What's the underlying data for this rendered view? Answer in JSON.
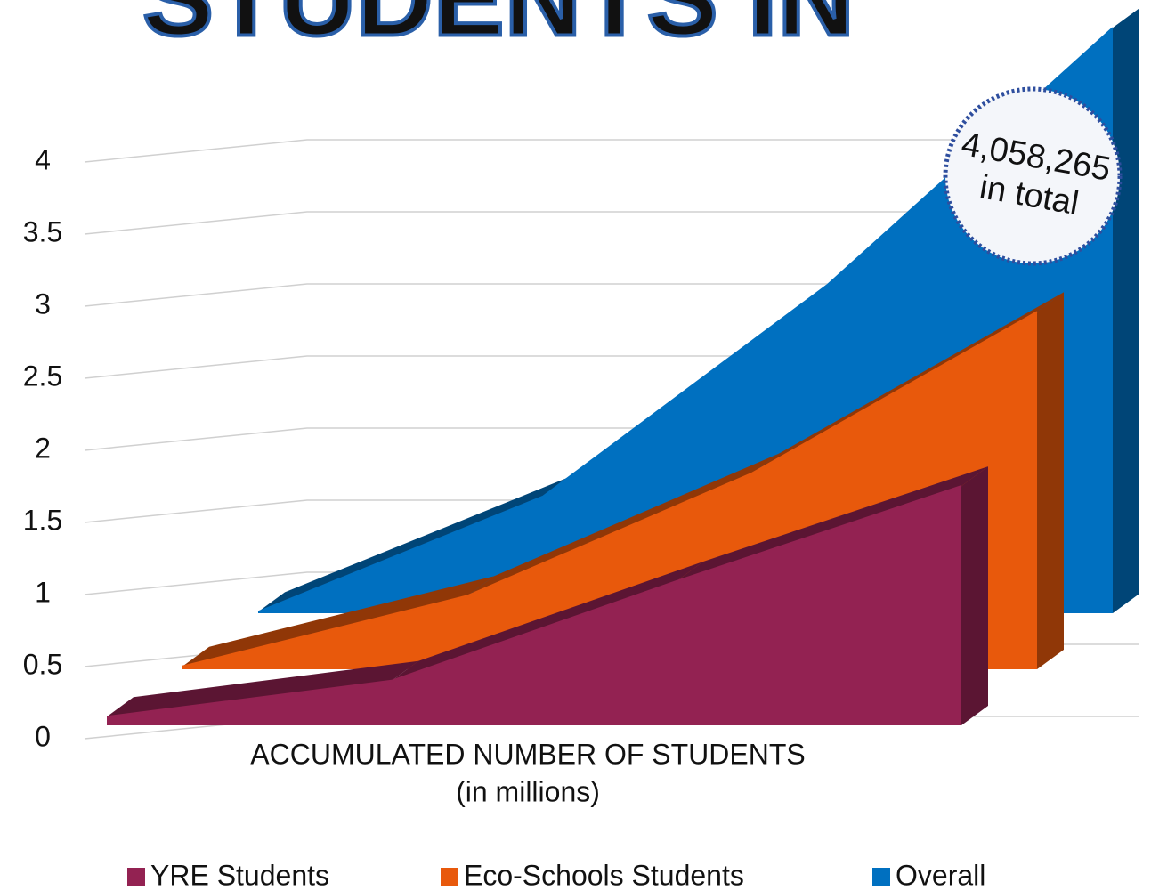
{
  "chart_data": {
    "type": "area3d",
    "title": "STUDENTS IN",
    "x_label": "ACCUMULATED NUMBER OF STUDENTS",
    "x_sublabel": "(in millions)",
    "annotation": {
      "value": "4,058,265",
      "text": "in total"
    },
    "categories": [
      null,
      null,
      null,
      null
    ],
    "series": [
      {
        "name": "YRE Students",
        "color": "#932252",
        "values": [
          0.06,
          0.31,
          1.0,
          1.66
        ]
      },
      {
        "name": "Eco-Schools Students",
        "color": "#e8590c",
        "values": [
          0.02,
          0.51,
          1.36,
          2.48
        ]
      },
      {
        "name": "Overall",
        "color": "#0070c0",
        "values": [
          0.01,
          0.81,
          2.28,
          4.06
        ]
      }
    ],
    "ylim": [
      0,
      4
    ],
    "yticks": [
      0,
      0.5,
      1,
      1.5,
      2,
      2.5,
      3,
      3.5,
      4
    ],
    "grid": true,
    "legend": "bottom"
  }
}
